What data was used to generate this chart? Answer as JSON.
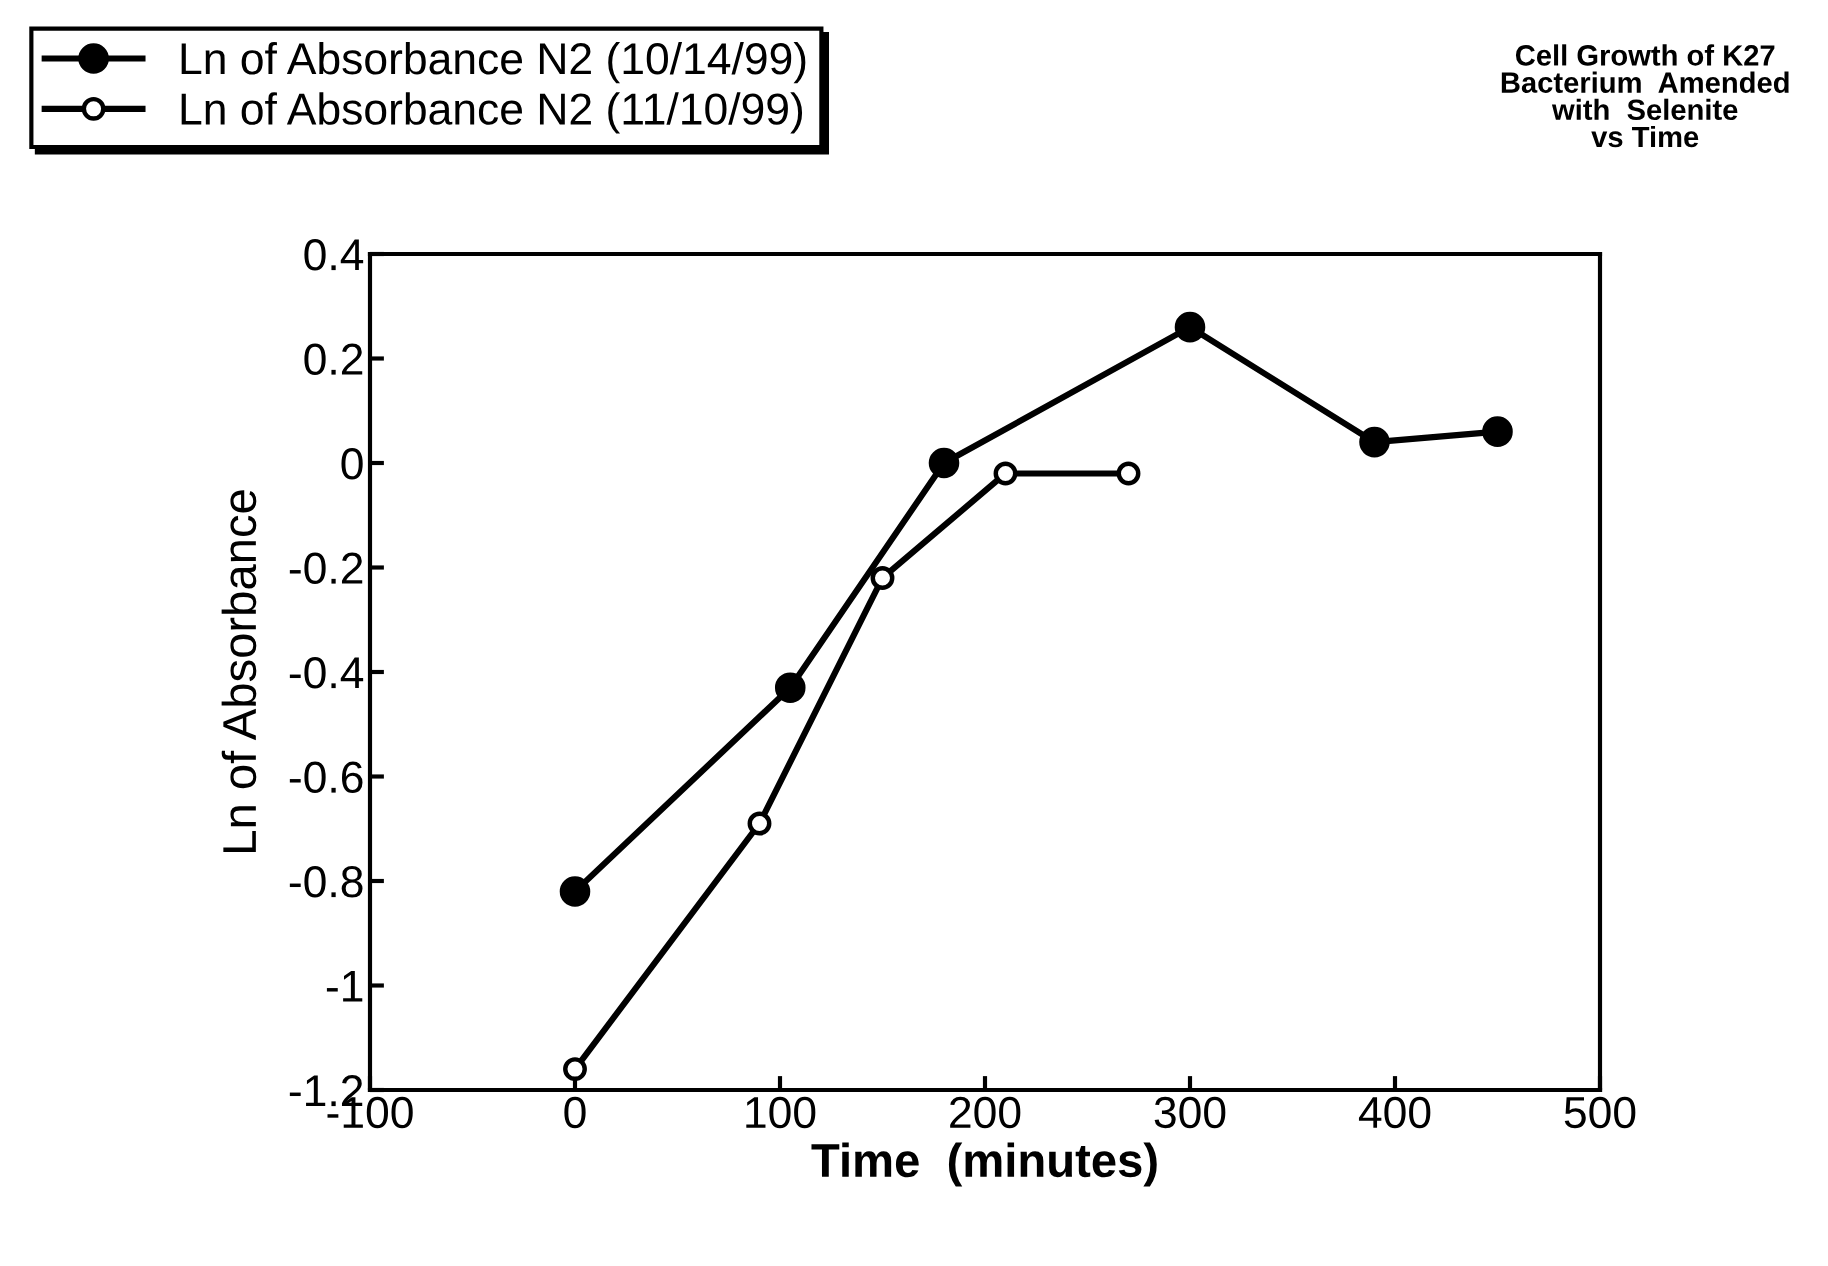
{
  "chart_data": {
    "type": "line",
    "title": "Cell Growth of K27\nBacterium  Amended\nwith  Selenite\nvs Time",
    "xlabel": "Time  (minutes)",
    "ylabel": "Ln of Absorbance",
    "series": [
      {
        "name": "Ln of Absorbance N2 (10/14/99)",
        "color": "#000000",
        "marker": "circle",
        "x": [
          0,
          105,
          180,
          300,
          390,
          450
        ],
        "values": [
          -0.82,
          -0.43,
          0,
          0.26,
          0.04,
          0.06
        ]
      },
      {
        "name": "Ln of Absorbance N2 (11/10/99)",
        "color": "#000000",
        "marker": "open circle",
        "x": [
          0,
          90,
          150,
          210,
          270
        ],
        "values": [
          -1.16,
          -0.69,
          -0.22,
          -0.02,
          -0.02
        ]
      }
    ],
    "xlim": [
      -100,
      500
    ],
    "xticks": [
      -100,
      0,
      100,
      200,
      300,
      400,
      500
    ],
    "ylim": [
      -1.2,
      0.4
    ],
    "yticks": [
      -1.2,
      -1,
      -0.8,
      -0.6,
      -0.4,
      -0.2,
      0,
      0.2,
      0.4
    ],
    "grid": false,
    "legend": "top left",
    "line_style": "solid"
  }
}
